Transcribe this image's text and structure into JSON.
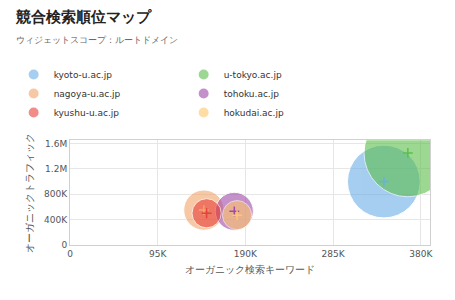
{
  "chart_data": {
    "type": "bubble",
    "title": "競合検索順位マップ",
    "subtitle": "ウィジェットスコープ：ルートドメイン",
    "x_label": "オーガニック検索キーワード",
    "y_label": "オーガニックトラフィック",
    "legend": "top",
    "grid": true,
    "xlim": [
      0,
      390000
    ],
    "ylim": [
      0,
      1650000
    ],
    "xticks": [
      0,
      {
        "value": 95000,
        "label": "95K"
      },
      {
        "value": 190000,
        "label": "190K"
      },
      {
        "value": 285000,
        "label": "285K"
      },
      {
        "value": 380000,
        "label": "380K"
      }
    ],
    "yticks": [
      0,
      {
        "value": 400000,
        "label": "400K"
      },
      {
        "value": 800000,
        "label": "800K"
      },
      {
        "value": 1200000,
        "label": "1.2M"
      },
      {
        "value": 1600000,
        "label": "1.6M"
      }
    ],
    "series": [
      {
        "name": "kyoto-u.ac.jp",
        "color": "#6aaee8",
        "x": [
          340000
        ],
        "values": [
          1000000
        ],
        "size": [
          620
        ]
      },
      {
        "name": "u-tokyo.ac.jp",
        "color": "#5cbf4a",
        "x": [
          366000
        ],
        "values": [
          1450000
        ],
        "size": [
          900
        ]
      },
      {
        "name": "nagoya-u.ac.jp",
        "color": "#f3a56b",
        "x": [
          145000
        ],
        "values": [
          550000
        ],
        "size": [
          190
        ]
      },
      {
        "name": "tohoku.ac.jp",
        "color": "#a049a8",
        "x": [
          178000
        ],
        "values": [
          530000
        ],
        "size": [
          170
        ]
      },
      {
        "name": "kyushu-u.ac.jp",
        "color": "#e8403a",
        "x": [
          148000
        ],
        "values": [
          500000
        ],
        "size": [
          100
        ]
      },
      {
        "name": "hokudai.ac.jp",
        "color": "#ffc76a",
        "x": [
          181000
        ],
        "values": [
          470000
        ],
        "size": [
          100
        ]
      }
    ]
  }
}
